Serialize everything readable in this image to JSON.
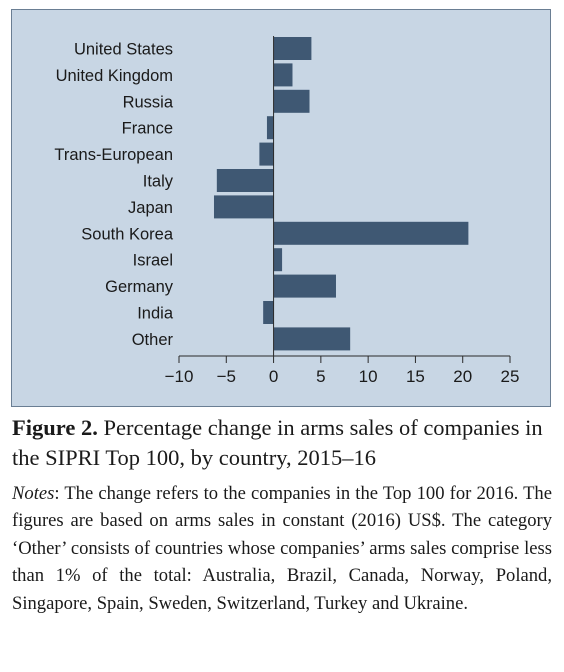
{
  "chart_data": {
    "type": "bar",
    "orientation": "horizontal",
    "categories": [
      "United States",
      "United Kingdom",
      "Russia",
      "France",
      "Trans-European",
      "Italy",
      "Japan",
      "South Korea",
      "Israel",
      "Germany",
      "India",
      "Other"
    ],
    "values": [
      4.0,
      2.0,
      3.8,
      -0.7,
      -1.5,
      -6.0,
      -6.3,
      20.6,
      0.9,
      6.6,
      -1.1,
      8.1
    ],
    "xlim": [
      -10,
      25
    ],
    "xticks": [
      -10,
      -5,
      0,
      5,
      10,
      15,
      20,
      25
    ],
    "xtick_labels": [
      "−10",
      "−5",
      "0",
      "5",
      "10",
      "15",
      "20",
      "25"
    ],
    "grid": false,
    "bar_color": "#3f5873",
    "background_color": "#c8d6e4"
  },
  "caption": {
    "label": "Figure 2.",
    "text": " Percentage change in arms sales of companies in the SIPRI Top 100, by country, 2015–16"
  },
  "notes": {
    "label": "Notes",
    "text": ": The change refers to the companies in the Top 100 for 2016. The figures are based on arms sales in constant (2016) US$. The category ‘Other’ consists of countries whose companies’ arms sales comprise less than 1% of the total: Australia, Brazil, Canada, Norway, Poland, Singapore, Spain, Sweden, Switzerland, Turkey and Ukraine."
  }
}
